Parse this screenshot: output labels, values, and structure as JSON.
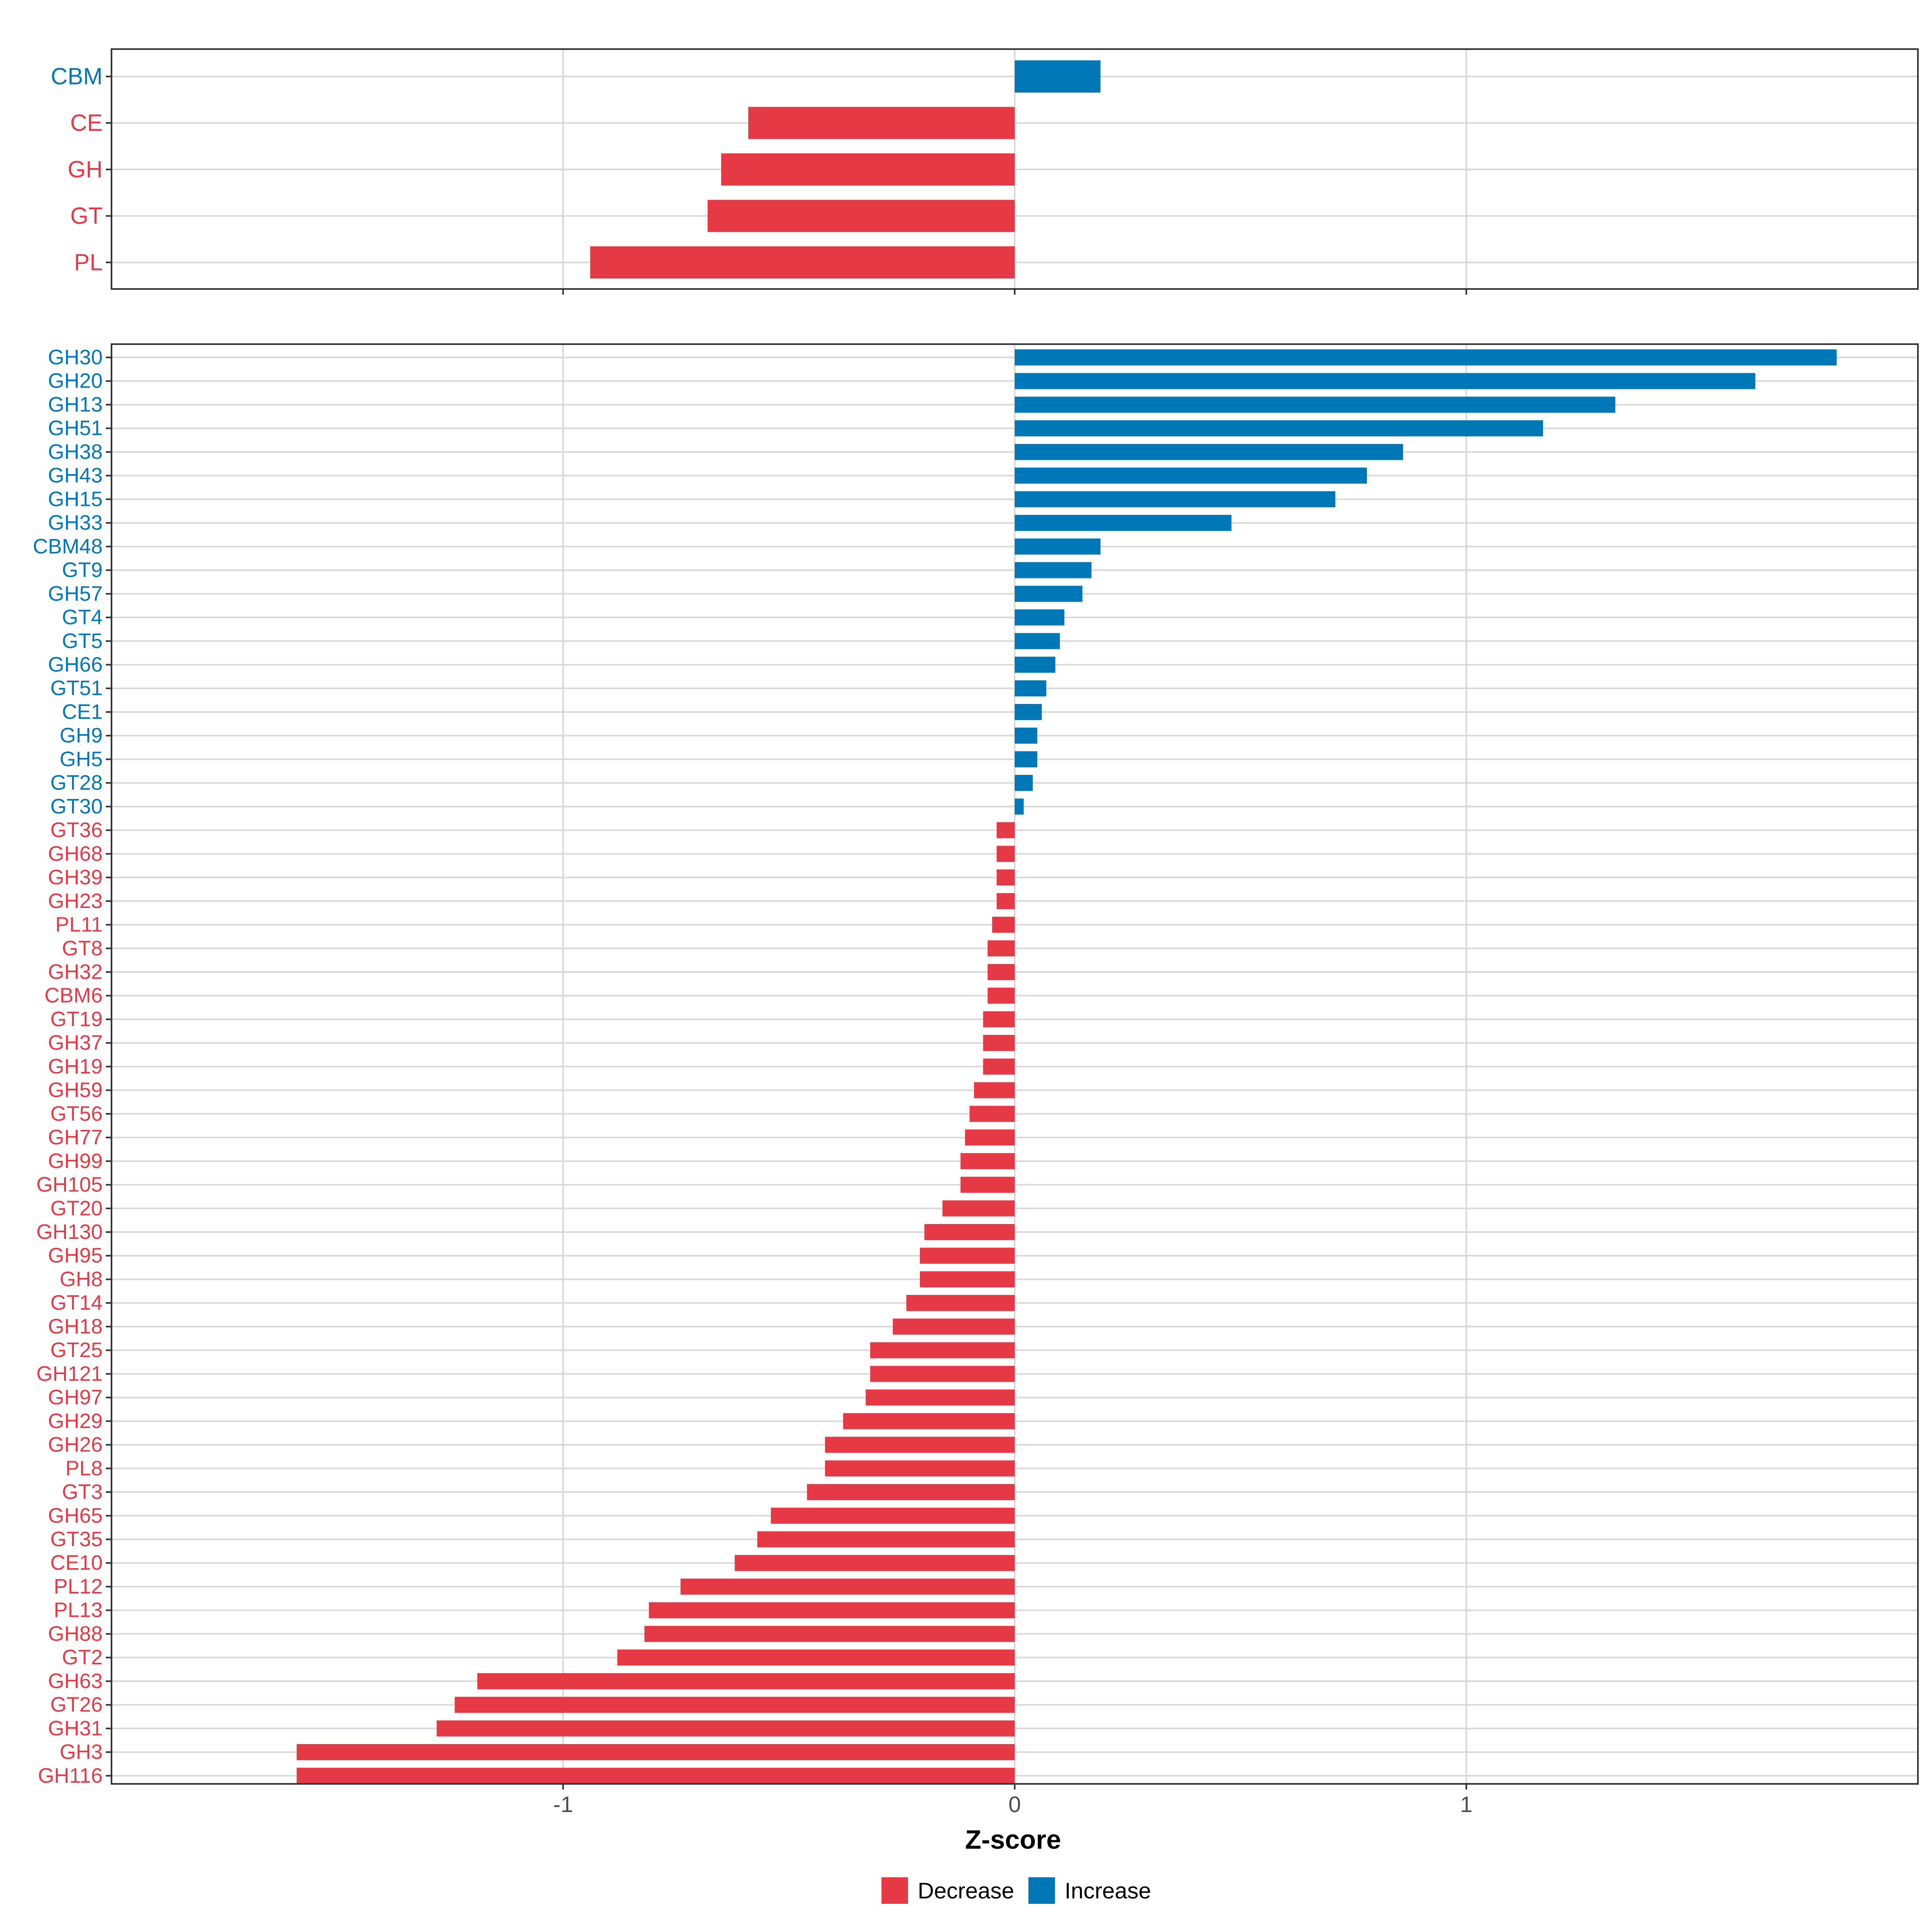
{
  "chart_data": [
    {
      "type": "bar",
      "orientation": "horizontal",
      "title": "",
      "xlabel": "Z-score",
      "ylabel": "",
      "xlim": [
        -2.0,
        2.0
      ],
      "xticks": [
        -1,
        0,
        1
      ],
      "xtick_labels": [
        "-1",
        "0",
        "1"
      ],
      "grid": true,
      "categories": [
        "CBM",
        "CE",
        "GH",
        "GT",
        "PL"
      ],
      "values": [
        0.19,
        -0.59,
        -0.65,
        -0.68,
        -0.94
      ],
      "directions": [
        "Increase",
        "Decrease",
        "Decrease",
        "Decrease",
        "Decrease"
      ]
    },
    {
      "type": "bar",
      "orientation": "horizontal",
      "title": "",
      "xlabel": "Z-score",
      "ylabel": "",
      "xlim": [
        -2.0,
        2.0
      ],
      "xticks": [
        -1,
        0,
        1
      ],
      "xtick_labels": [
        "-1",
        "0",
        "1"
      ],
      "grid": true,
      "categories": [
        "GH30",
        "GH20",
        "GH13",
        "GH51",
        "GH38",
        "GH43",
        "GH15",
        "GH33",
        "CBM48",
        "GT9",
        "GH57",
        "GT4",
        "GT5",
        "GH66",
        "GT51",
        "CE1",
        "GH9",
        "GH5",
        "GT28",
        "GT30",
        "GT36",
        "GH68",
        "GH39",
        "GH23",
        "PL11",
        "GT8",
        "GH32",
        "CBM6",
        "GT19",
        "GH37",
        "GH19",
        "GH59",
        "GT56",
        "GH77",
        "GH99",
        "GH105",
        "GT20",
        "GH130",
        "GH95",
        "GH8",
        "GT14",
        "GH18",
        "GT25",
        "GH121",
        "GH97",
        "GH29",
        "GH26",
        "PL8",
        "GT3",
        "GH65",
        "GT35",
        "CE10",
        "PL12",
        "PL13",
        "GH88",
        "GT2",
        "GH63",
        "GT26",
        "GH31",
        "GH3",
        "GH116"
      ],
      "values": [
        1.82,
        1.64,
        1.33,
        1.17,
        0.86,
        0.78,
        0.71,
        0.48,
        0.19,
        0.17,
        0.15,
        0.11,
        0.1,
        0.09,
        0.07,
        0.06,
        0.05,
        0.05,
        0.04,
        0.02,
        -0.04,
        -0.04,
        -0.04,
        -0.04,
        -0.05,
        -0.06,
        -0.06,
        -0.06,
        -0.07,
        -0.07,
        -0.07,
        -0.09,
        -0.1,
        -0.11,
        -0.12,
        -0.12,
        -0.16,
        -0.2,
        -0.21,
        -0.21,
        -0.24,
        -0.27,
        -0.32,
        -0.32,
        -0.33,
        -0.38,
        -0.42,
        -0.42,
        -0.46,
        -0.54,
        -0.57,
        -0.62,
        -0.74,
        -0.81,
        -0.82,
        -0.88,
        -1.19,
        -1.24,
        -1.28,
        -1.59,
        -1.59
      ]
    }
  ],
  "legend": {
    "position": "bottom",
    "items": [
      {
        "label": "Decrease",
        "color": "#e63946"
      },
      {
        "label": "Increase",
        "color": "#0077b6"
      }
    ]
  },
  "colors": {
    "decrease": "#e63946",
    "increase": "#0077b6",
    "grid": "#d9d9d9",
    "panel_border": "#333333",
    "text": "#000000"
  }
}
